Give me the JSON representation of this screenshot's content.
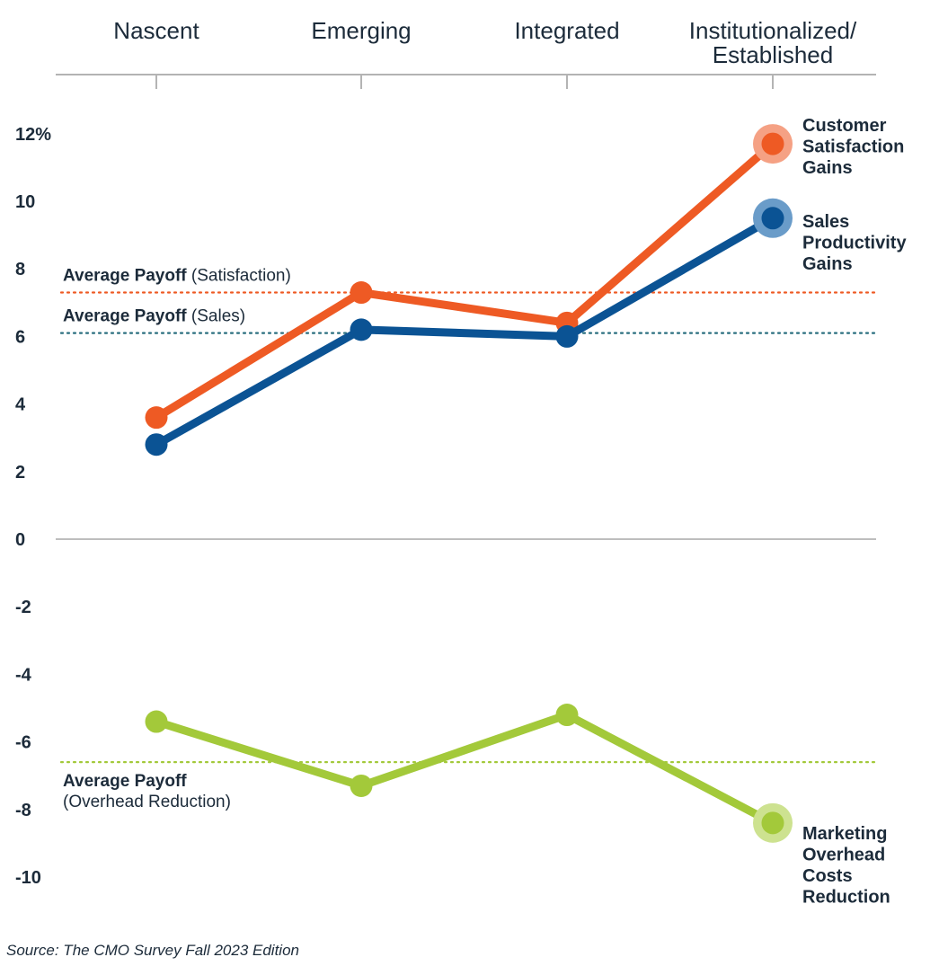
{
  "chart_data": {
    "type": "line",
    "categories": [
      "Nascent",
      "Emerging",
      "Integrated",
      "Institutionalized/\nEstablished"
    ],
    "category_lines": [
      [
        "Nascent"
      ],
      [
        "Emerging"
      ],
      [
        "Integrated"
      ],
      [
        "Institutionalized/",
        "Established"
      ]
    ],
    "y_ticks": [
      12,
      10,
      8,
      6,
      4,
      2,
      0,
      -2,
      -4,
      -6,
      -8,
      -10
    ],
    "y_tick_labels": [
      "12%",
      "10",
      "8",
      "6",
      "4",
      "2",
      "0",
      "-2",
      "-4",
      "-6",
      "-8",
      "-10"
    ],
    "ylim": [
      -10,
      12
    ],
    "series": [
      {
        "key": "satisfaction",
        "name": "Customer Satisfaction Gains",
        "label_lines": [
          "Customer",
          "Satisfaction",
          "Gains"
        ],
        "values": [
          3.6,
          7.3,
          6.4,
          11.7
        ],
        "color": "#ee5a24",
        "halo": "#f5a184"
      },
      {
        "key": "sales",
        "name": "Sales Productivity Gains",
        "label_lines": [
          "Sales",
          "Productivity",
          "Gains"
        ],
        "values": [
          2.8,
          6.2,
          6.0,
          9.5
        ],
        "color": "#0b5394",
        "halo": "#6a9cc9"
      },
      {
        "key": "overhead",
        "name": "Marketing Overhead Costs Reduction",
        "label_lines": [
          "Marketing",
          "Overhead",
          "Costs",
          "Reduction"
        ],
        "values": [
          -5.4,
          -7.3,
          -5.2,
          -8.4
        ],
        "color": "#a3c93a",
        "halo": "#cde290"
      }
    ],
    "averages": [
      {
        "key": "satisfaction",
        "value": 7.3,
        "bold": "Average Payoff",
        "normal": "(Satisfaction)",
        "color": "#ee5a24"
      },
      {
        "key": "sales",
        "value": 6.1,
        "bold": "Average Payoff",
        "normal": "(Sales)",
        "color": "#2a6f7f"
      },
      {
        "key": "overhead",
        "value": -6.6,
        "bold": "Average Payoff",
        "normal": "(Overhead Reduction)",
        "color": "#a3c93a"
      }
    ]
  },
  "source": "Source: The CMO Survey Fall 2023 Edition"
}
